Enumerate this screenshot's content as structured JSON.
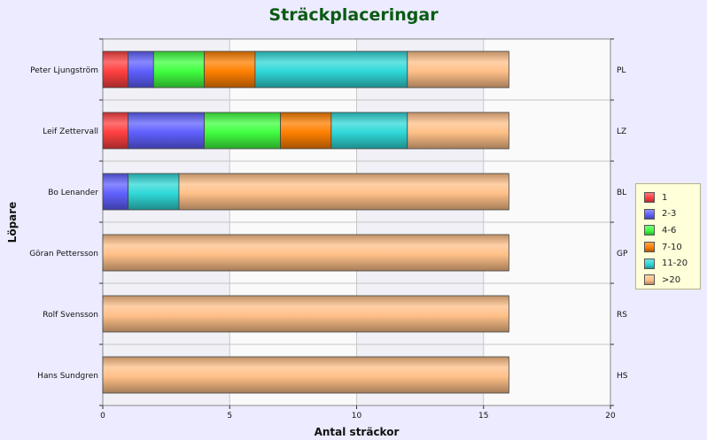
{
  "chart_data": {
    "type": "bar",
    "orientation": "horizontal",
    "stacked": true,
    "title": "Sträckplaceringar",
    "xlabel": "Antal sträckor",
    "ylabel": "Löpare",
    "xlim": [
      0,
      20
    ],
    "xticks": [
      "0",
      "5",
      "10",
      "15",
      "20"
    ],
    "categories": [
      "Peter Ljungström",
      "Leif Zettervall",
      "Bo Lenander",
      "Göran Pettersson",
      "Rolf Svensson",
      "Hans Sundgren"
    ],
    "secondary_labels": [
      "PL",
      "LZ",
      "BL",
      "GP",
      "RS",
      "HS"
    ],
    "series": [
      {
        "name": "1",
        "color": "#ff4040",
        "values": [
          1,
          1,
          0,
          0,
          0,
          0
        ]
      },
      {
        "name": "2-3",
        "color": "#6060ff",
        "values": [
          1,
          3,
          1,
          0,
          0,
          0
        ]
      },
      {
        "name": "4-6",
        "color": "#40ff40",
        "values": [
          2,
          3,
          0,
          0,
          0,
          0
        ]
      },
      {
        "name": "7-10",
        "color": "#ff8000",
        "values": [
          2,
          2,
          0,
          0,
          0,
          0
        ]
      },
      {
        "name": "11-20",
        "color": "#30d8d8",
        "values": [
          6,
          3,
          2,
          0,
          0,
          0
        ]
      },
      {
        "name": ">20",
        "color": "#ffc088",
        "values": [
          4,
          4,
          13,
          16,
          16,
          16
        ]
      }
    ],
    "grid": true,
    "legend_position": "right"
  }
}
